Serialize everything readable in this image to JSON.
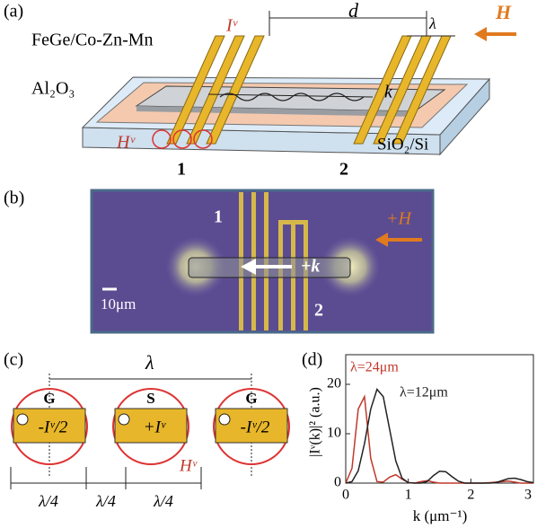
{
  "panel_a": {
    "label": "(a)",
    "distance": "d",
    "wavelength": "λ",
    "field": "H",
    "current": "Iᵛ",
    "film": "FeGe/Co-Zn-Mn",
    "layer": "Al₂O₃",
    "wavevector": "k",
    "antenna_field": "Hᵛ",
    "substrate": "SiO₂/Si",
    "antenna_1": "1",
    "antenna_2": "2"
  },
  "panel_b": {
    "label": "(b)",
    "antenna_1": "1",
    "field": "+H",
    "wavevector": "+k",
    "scale_bar": "10μm",
    "antenna_2": "2"
  },
  "panel_c": {
    "label": "(c)",
    "wavelength": "λ",
    "pads": [
      "G",
      "S",
      "G"
    ],
    "currents": [
      "-Iᵛ/2",
      "+Iᵛ",
      "-Iᵛ/2"
    ],
    "antenna_field": "Hᵛ",
    "spacings": [
      "λ/4",
      "λ/4",
      "λ/4"
    ]
  },
  "chart_data": {
    "type": "line",
    "label": "(d)",
    "y_label": "|Iᵛ(k)|² (a.u.)",
    "x_label": "k (μm⁻¹)",
    "x": [
      0,
      0.1,
      0.2,
      0.3,
      0.4,
      0.5,
      0.6,
      0.7,
      0.8,
      0.9,
      1.0,
      1.1,
      1.2,
      1.3,
      1.4,
      1.5,
      1.6,
      1.7,
      1.8,
      1.9,
      2.0,
      2.1,
      2.2,
      2.3,
      2.4,
      2.5,
      2.6,
      2.7,
      2.8,
      2.9,
      3.0
    ],
    "series": [
      {
        "name": "λ=24μm",
        "color": "#c0392b",
        "values": [
          0,
          3,
          15,
          17.5,
          5,
          0.3,
          0.2,
          1.2,
          1.7,
          0.8,
          0.1,
          0,
          0.3,
          0.5,
          0.2,
          0,
          0,
          0,
          0,
          0,
          0,
          0,
          0,
          0.1,
          0.2,
          0.3,
          0.4,
          0.2,
          0,
          0,
          0
        ]
      },
      {
        "name": "λ=12μm",
        "color": "#222222",
        "values": [
          0,
          0.3,
          2.5,
          8,
          15,
          19,
          17.5,
          11,
          4.5,
          1,
          0.1,
          0,
          0,
          0.3,
          1.5,
          2.4,
          2.3,
          1.3,
          0.4,
          0,
          0,
          0,
          0,
          0,
          0.1,
          0.5,
          0.9,
          1.0,
          0.7,
          0.3,
          0.1
        ]
      }
    ],
    "xlim": [
      0,
      3
    ],
    "ylim": [
      0,
      26
    ],
    "xticks": [
      0,
      1,
      2,
      3
    ],
    "yticks": [
      0,
      10,
      20
    ]
  }
}
